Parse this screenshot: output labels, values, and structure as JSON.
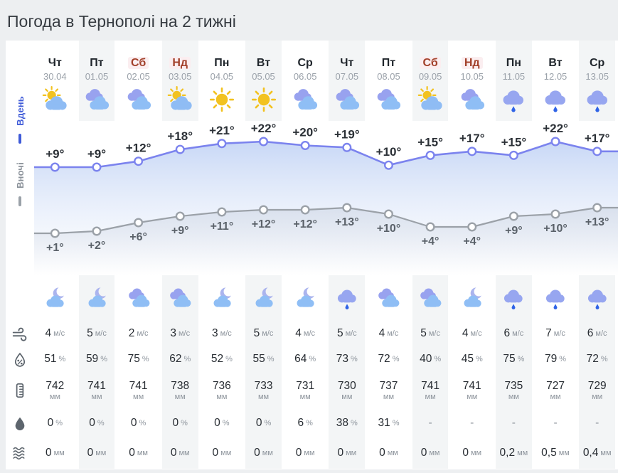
{
  "header": {
    "title": "Погода в Тернополі на 2 тижні"
  },
  "legend": {
    "day_label": "Вдень",
    "night_label": "Вночі"
  },
  "units": {
    "wind": "м/с",
    "percent": "%",
    "mm": "мм"
  },
  "colors": {
    "day_line": "#7b83ee",
    "night_line": "#9ba1a8",
    "weekend_text": "#a2402a",
    "accent_blue": "#3f5bd8",
    "stripe": "#f3f5f6"
  },
  "columns": [
    {
      "day": "Чт",
      "date": "30.04",
      "weekend": false,
      "icon_day": "sun-cloud",
      "icon_night": "moon-cloud",
      "t_day_label": "+9°",
      "t_night_label": "+1°",
      "wind": "4",
      "hum": "51",
      "press": "742",
      "prob": "0",
      "amount": "0"
    },
    {
      "day": "Пт",
      "date": "01.05",
      "weekend": false,
      "icon_day": "clouds",
      "icon_night": "moon-cloud",
      "t_day_label": "+9°",
      "t_night_label": "+2°",
      "wind": "5",
      "hum": "59",
      "press": "741",
      "prob": "0",
      "amount": "0"
    },
    {
      "day": "Сб",
      "date": "02.05",
      "weekend": true,
      "icon_day": "clouds",
      "icon_night": "clouds",
      "t_day_label": "+12°",
      "t_night_label": "+6°",
      "wind": "2",
      "hum": "75",
      "press": "741",
      "prob": "0",
      "amount": "0"
    },
    {
      "day": "Нд",
      "date": "03.05",
      "weekend": true,
      "icon_day": "sun-cloud",
      "icon_night": "clouds",
      "t_day_label": "+18°",
      "t_night_label": "+9°",
      "wind": "3",
      "hum": "62",
      "press": "738",
      "prob": "0",
      "amount": "0"
    },
    {
      "day": "Пн",
      "date": "04.05",
      "weekend": false,
      "icon_day": "sun",
      "icon_night": "moon-cloud",
      "t_day_label": "+21°",
      "t_night_label": "+11°",
      "wind": "3",
      "hum": "52",
      "press": "736",
      "prob": "0",
      "amount": "0"
    },
    {
      "day": "Вт",
      "date": "05.05",
      "weekend": false,
      "icon_day": "sun",
      "icon_night": "moon-cloud",
      "t_day_label": "+22°",
      "t_night_label": "+12°",
      "wind": "5",
      "hum": "55",
      "press": "733",
      "prob": "0",
      "amount": "0"
    },
    {
      "day": "Ср",
      "date": "06.05",
      "weekend": false,
      "icon_day": "clouds",
      "icon_night": "moon-cloud",
      "t_day_label": "+20°",
      "t_night_label": "+12°",
      "wind": "4",
      "hum": "64",
      "press": "731",
      "prob": "6",
      "amount": "0"
    },
    {
      "day": "Чт",
      "date": "07.05",
      "weekend": false,
      "icon_day": "clouds",
      "icon_night": "cloud-rain",
      "t_day_label": "+19°",
      "t_night_label": "+13°",
      "wind": "5",
      "hum": "73",
      "press": "730",
      "prob": "38",
      "amount": "0"
    },
    {
      "day": "Пт",
      "date": "08.05",
      "weekend": false,
      "icon_day": "clouds",
      "icon_night": "clouds",
      "t_day_label": "+10°",
      "t_night_label": "+10°",
      "wind": "4",
      "hum": "72",
      "press": "737",
      "prob": "31",
      "amount": "0"
    },
    {
      "day": "Сб",
      "date": "09.05",
      "weekend": true,
      "icon_day": "sun-cloud",
      "icon_night": "clouds",
      "t_day_label": "+15°",
      "t_night_label": "+4°",
      "wind": "5",
      "hum": "40",
      "press": "741",
      "prob": "-",
      "amount": "0"
    },
    {
      "day": "Нд",
      "date": "10.05",
      "weekend": true,
      "icon_day": "clouds",
      "icon_night": "moon-cloud",
      "t_day_label": "+17°",
      "t_night_label": "+4°",
      "wind": "4",
      "hum": "45",
      "press": "741",
      "prob": "-",
      "amount": "0"
    },
    {
      "day": "Пн",
      "date": "11.05",
      "weekend": false,
      "icon_day": "cloud-rain",
      "icon_night": "cloud-rain",
      "t_day_label": "+15°",
      "t_night_label": "+9°",
      "wind": "6",
      "hum": "75",
      "press": "735",
      "prob": "-",
      "amount": "0,2"
    },
    {
      "day": "Вт",
      "date": "12.05",
      "weekend": false,
      "icon_day": "cloud-rain",
      "icon_night": "cloud-rain",
      "t_day_label": "+22°",
      "t_night_label": "+10°",
      "wind": "7",
      "hum": "79",
      "press": "727",
      "prob": "-",
      "amount": "0,5"
    },
    {
      "day": "Ср",
      "date": "13.05",
      "weekend": false,
      "icon_day": "cloud-rain",
      "icon_night": "cloud-rain",
      "t_day_label": "+17°",
      "t_night_label": "+13°",
      "wind": "6",
      "hum": "72",
      "press": "729",
      "prob": "-",
      "amount": "0,4"
    }
  ],
  "chart_data": {
    "type": "line",
    "categories": [
      "30.04",
      "01.05",
      "02.05",
      "03.05",
      "04.05",
      "05.05",
      "06.05",
      "07.05",
      "08.05",
      "09.05",
      "10.05",
      "11.05",
      "12.05",
      "13.05"
    ],
    "series": [
      {
        "name": "Вдень",
        "color": "#7b83ee",
        "values": [
          9,
          9,
          12,
          18,
          21,
          22,
          20,
          19,
          10,
          15,
          17,
          15,
          22,
          17
        ]
      },
      {
        "name": "Вночі",
        "color": "#9ba1a8",
        "values": [
          1,
          2,
          6,
          9,
          11,
          12,
          12,
          13,
          10,
          4,
          4,
          9,
          10,
          13
        ]
      }
    ],
    "unit": "°C",
    "legend_position": "left-vertical",
    "grid": false
  }
}
